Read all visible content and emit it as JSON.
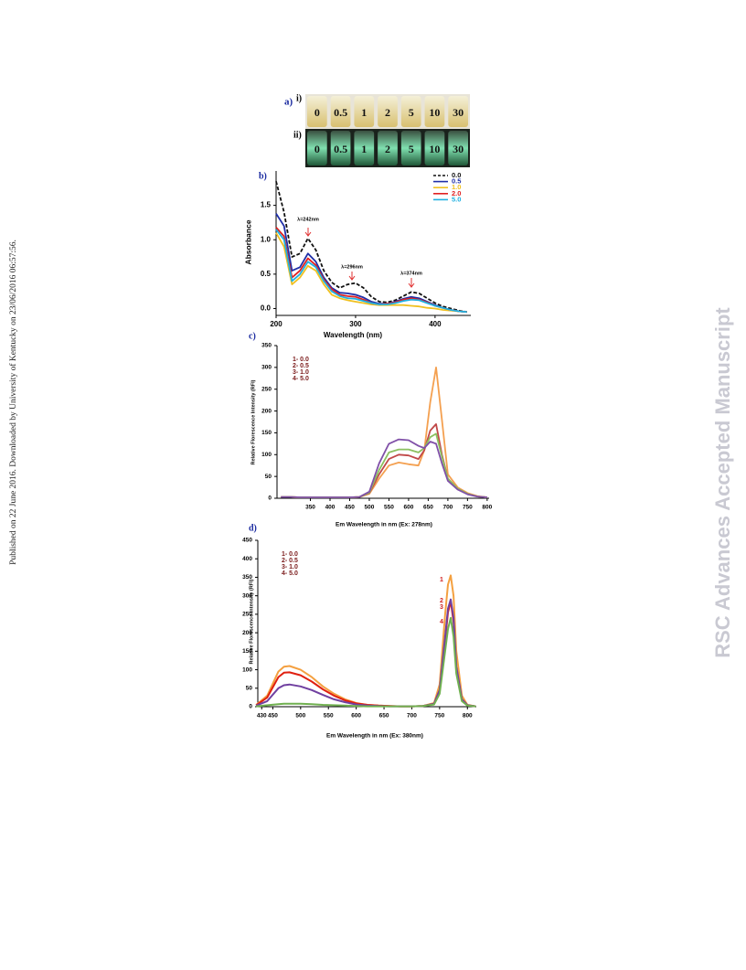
{
  "side_note": "Published on 22 June 2016. Downloaded by University of Kentucky on 23/06/2016 06:57:56.",
  "watermark": "RSC Advances Accepted Manuscript",
  "photo": {
    "label": "a)",
    "rows": [
      {
        "label": "i)",
        "vials": [
          "0",
          "0.5",
          "1",
          "2",
          "5",
          "10",
          "30"
        ]
      },
      {
        "label": "ii)",
        "vials": [
          "0",
          "0.5",
          "1",
          "2",
          "5",
          "10",
          "30"
        ]
      }
    ]
  },
  "chart_data": [
    {
      "type": "line",
      "panel_label": "b)",
      "x_label": "Wavelength (nm)",
      "y_label": "Absorbance",
      "x": [
        200,
        210,
        220,
        230,
        240,
        250,
        260,
        270,
        280,
        290,
        300,
        310,
        320,
        330,
        340,
        350,
        360,
        370,
        380,
        390,
        400,
        410,
        420,
        430,
        440
      ],
      "xlim": [
        200,
        445
      ],
      "xticks": [
        200,
        300,
        400
      ],
      "ylim": [
        -0.1,
        2.0
      ],
      "yticks": [
        {
          "value": 0,
          "label": "0.0"
        },
        0.5,
        {
          "value": 1,
          "label": "1.0"
        },
        1.5
      ],
      "series": [
        {
          "name": "0.0",
          "color": "#111111",
          "dashed": true,
          "values": [
            1.85,
            1.4,
            0.75,
            0.8,
            1.02,
            0.85,
            0.55,
            0.38,
            0.3,
            0.35,
            0.37,
            0.3,
            0.17,
            0.1,
            0.09,
            0.12,
            0.18,
            0.24,
            0.22,
            0.15,
            0.08,
            0.03,
            0,
            -0.03,
            -0.05
          ]
        },
        {
          "name": "0.5",
          "color": "#1f2fa8",
          "values": [
            1.38,
            1.2,
            0.55,
            0.6,
            0.8,
            0.68,
            0.45,
            0.3,
            0.23,
            0.22,
            0.2,
            0.16,
            0.1,
            0.07,
            0.07,
            0.1,
            0.14,
            0.17,
            0.15,
            0.1,
            0.05,
            0.01,
            -0.02,
            -0.04,
            -0.05
          ]
        },
        {
          "name": "1.0",
          "color": "#f0c020",
          "values": [
            1.1,
            0.9,
            0.35,
            0.45,
            0.62,
            0.55,
            0.35,
            0.2,
            0.15,
            0.12,
            0.1,
            0.08,
            0.06,
            0.05,
            0.05,
            0.05,
            0.05,
            0.04,
            0.03,
            0.01,
            0,
            -0.02,
            -0.03,
            -0.04,
            -0.05
          ]
        },
        {
          "name": "2.0",
          "color": "#e02020",
          "values": [
            1.18,
            1.05,
            0.45,
            0.55,
            0.73,
            0.63,
            0.42,
            0.28,
            0.2,
            0.18,
            0.17,
            0.13,
            0.08,
            0.06,
            0.07,
            0.09,
            0.13,
            0.15,
            0.13,
            0.09,
            0.04,
            0.01,
            -0.02,
            -0.04,
            -0.05
          ]
        },
        {
          "name": "5.0",
          "color": "#20b0e0",
          "values": [
            1.15,
            1.0,
            0.4,
            0.5,
            0.68,
            0.6,
            0.4,
            0.25,
            0.18,
            0.15,
            0.14,
            0.11,
            0.08,
            0.06,
            0.06,
            0.08,
            0.11,
            0.13,
            0.12,
            0.08,
            0.04,
            0.01,
            -0.02,
            -0.04,
            -0.05
          ]
        }
      ],
      "annotations": [
        "λ=242nm",
        "λ=296nm",
        "λ=374nm"
      ]
    },
    {
      "type": "line",
      "panel_label": "c)",
      "x_label": "Em Wavelength in nm (Ex: 278nm)",
      "y_label": "Relative Florescence Intensity (RFI)",
      "x": [
        275,
        300,
        325,
        350,
        375,
        400,
        425,
        450,
        475,
        500,
        525,
        550,
        575,
        600,
        625,
        640,
        655,
        670,
        685,
        700,
        725,
        750,
        775,
        800
      ],
      "xlim": [
        265,
        805
      ],
      "xticks": [
        350,
        400,
        450,
        500,
        550,
        600,
        650,
        700,
        750,
        800
      ],
      "ylim": [
        0,
        350
      ],
      "yticks": [
        0,
        50,
        100,
        150,
        200,
        250,
        300,
        350
      ],
      "series": [
        {
          "name": "1- 0.0",
          "color": "#f4a050",
          "values": [
            3,
            3,
            2,
            2,
            2,
            2,
            2,
            2,
            3,
            10,
            45,
            75,
            82,
            78,
            75,
            110,
            220,
            300,
            180,
            55,
            25,
            12,
            5,
            2
          ]
        },
        {
          "name": "2- 0.5",
          "color": "#c04848",
          "values": [
            3,
            3,
            2,
            2,
            2,
            2,
            2,
            2,
            3,
            12,
            55,
            90,
            100,
            98,
            90,
            110,
            155,
            170,
            100,
            45,
            22,
            10,
            4,
            2
          ]
        },
        {
          "name": "3- 1.0",
          "color": "#8cc060",
          "values": [
            3,
            3,
            2,
            2,
            2,
            2,
            2,
            2,
            3,
            13,
            65,
            105,
            112,
            112,
            105,
            115,
            140,
            148,
            95,
            45,
            22,
            10,
            4,
            2
          ]
        },
        {
          "name": "4- 5.0",
          "color": "#8050a8",
          "values": [
            3,
            3,
            2,
            2,
            2,
            2,
            2,
            2,
            3,
            15,
            80,
            125,
            135,
            133,
            120,
            115,
            130,
            125,
            80,
            40,
            20,
            9,
            4,
            2
          ]
        }
      ]
    },
    {
      "type": "line",
      "panel_label": "d)",
      "x_label": "Em Wavelength in nm  (Ex: 380nm)",
      "y_label": "Relative Florescence Intensity (RFI)",
      "x": [
        420,
        440,
        460,
        470,
        480,
        500,
        520,
        540,
        560,
        580,
        600,
        620,
        640,
        660,
        680,
        700,
        720,
        740,
        750,
        760,
        765,
        770,
        775,
        780,
        790,
        800,
        815
      ],
      "xlim": [
        423,
        816
      ],
      "xticks": [
        430,
        450,
        500,
        550,
        600,
        650,
        700,
        750,
        800
      ],
      "ylim": [
        0,
        450
      ],
      "yticks": [
        0,
        50,
        100,
        150,
        200,
        250,
        300,
        350,
        400,
        450
      ],
      "series": [
        {
          "name": "1- 0.0",
          "color": "#f4a040",
          "values": [
            5,
            30,
            95,
            108,
            110,
            100,
            80,
            55,
            35,
            20,
            10,
            5,
            3,
            2,
            1,
            1,
            2,
            10,
            60,
            250,
            330,
            355,
            300,
            150,
            30,
            5,
            1
          ]
        },
        {
          "name": "2- 0.5",
          "color": "#e02010",
          "values": [
            4,
            25,
            80,
            92,
            93,
            85,
            68,
            47,
            30,
            17,
            9,
            5,
            3,
            2,
            1,
            1,
            2,
            8,
            45,
            180,
            255,
            285,
            230,
            100,
            20,
            4,
            1
          ]
        },
        {
          "name": "3- 1.0",
          "color": "#7040a0",
          "values": [
            3,
            15,
            50,
            58,
            60,
            55,
            45,
            32,
            20,
            12,
            6,
            3,
            2,
            1,
            1,
            1,
            2,
            8,
            45,
            190,
            265,
            290,
            240,
            110,
            20,
            4,
            1
          ]
        },
        {
          "name": "4- 5.0",
          "color": "#70b050",
          "values": [
            1,
            4,
            7,
            8,
            8,
            8,
            7,
            5,
            4,
            3,
            2,
            1,
            1,
            1,
            1,
            1,
            2,
            6,
            35,
            150,
            210,
            240,
            190,
            90,
            15,
            3,
            1
          ]
        }
      ],
      "annotations": [
        "1",
        "2",
        "3",
        "4"
      ]
    }
  ]
}
